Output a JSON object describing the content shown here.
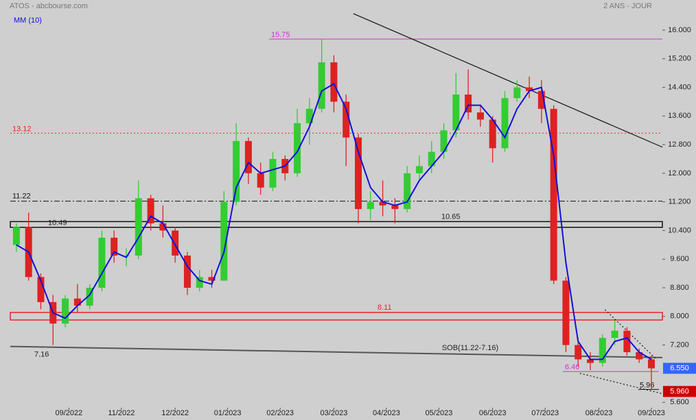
{
  "chart_data": {
    "type": "candlestick",
    "title": "ATOS - abcbourse.com",
    "subtitle": "2 ANS - JOUR",
    "x": [
      0.5,
      1.5,
      2.5,
      3.5,
      4.5,
      5.5,
      6.5,
      7.5,
      8.5,
      9.5,
      10.5,
      11.5,
      12.5,
      13.5,
      14.5,
      15.5,
      16.5,
      17.5,
      18.5,
      19.5,
      20.5,
      21.5,
      22.5,
      23.5,
      24.5,
      25.5,
      26.5,
      27.5,
      28.5,
      29.5,
      30.5,
      31.5,
      32.5,
      33.5,
      34.5,
      35.5,
      36.5,
      37.5,
      38.5,
      39.5,
      40.5,
      41.5,
      42.5,
      43.5,
      44.5,
      45.5,
      46.5,
      47.5,
      48.5,
      49.5,
      50.5,
      51.5,
      52.5
    ],
    "open": [
      10.0,
      10.5,
      9.1,
      8.4,
      7.8,
      8.5,
      8.3,
      8.8,
      10.2,
      9.7,
      9.7,
      11.3,
      10.6,
      10.4,
      9.7,
      8.8,
      9.1,
      9.0,
      11.2,
      12.9,
      12.0,
      11.6,
      12.4,
      12.0,
      13.4,
      13.8,
      15.1,
      14.0,
      13.0,
      11.0,
      11.2,
      11.1,
      11.0,
      12.0,
      12.2,
      12.6,
      13.2,
      14.2,
      13.7,
      13.5,
      12.7,
      14.1,
      14.4,
      14.3,
      13.8,
      9.0,
      7.2,
      6.8,
      6.7,
      7.4,
      7.6,
      7.0,
      6.8
    ],
    "high": [
      10.6,
      10.9,
      9.2,
      8.6,
      8.6,
      8.9,
      8.9,
      10.4,
      10.4,
      9.9,
      11.8,
      11.4,
      11.1,
      10.5,
      9.8,
      9.3,
      9.3,
      11.5,
      13.4,
      13.0,
      12.3,
      12.6,
      12.5,
      13.8,
      14.1,
      15.75,
      15.3,
      14.2,
      13.1,
      11.5,
      11.8,
      11.3,
      12.2,
      12.5,
      12.9,
      13.4,
      14.8,
      14.9,
      13.9,
      13.6,
      14.3,
      14.6,
      14.7,
      14.6,
      13.9,
      9.1,
      7.4,
      7.0,
      7.5,
      7.9,
      7.7,
      7.1,
      6.9
    ],
    "low": [
      9.8,
      9.0,
      8.2,
      7.2,
      7.7,
      8.1,
      8.2,
      8.7,
      9.5,
      9.4,
      9.6,
      10.4,
      10.2,
      9.5,
      8.6,
      8.7,
      8.8,
      9.0,
      11.1,
      11.7,
      11.4,
      11.5,
      11.8,
      11.9,
      12.8,
      13.7,
      13.7,
      12.2,
      10.6,
      10.7,
      10.8,
      10.6,
      10.9,
      11.8,
      12.0,
      12.4,
      13.0,
      13.5,
      13.3,
      12.3,
      12.6,
      14.0,
      14.1,
      13.4,
      8.9,
      7.0,
      6.6,
      6.5,
      6.6,
      7.2,
      6.9,
      6.7,
      5.96
    ],
    "close": [
      10.5,
      9.1,
      8.4,
      7.8,
      8.5,
      8.3,
      8.8,
      10.2,
      9.7,
      9.7,
      11.3,
      10.6,
      10.4,
      9.7,
      8.8,
      9.1,
      9.0,
      11.2,
      12.9,
      12.0,
      11.6,
      12.4,
      12.0,
      13.4,
      13.8,
      15.1,
      14.0,
      13.0,
      11.0,
      11.2,
      11.1,
      11.0,
      12.0,
      12.2,
      12.6,
      13.2,
      14.2,
      13.7,
      13.5,
      12.7,
      14.1,
      14.4,
      14.3,
      13.8,
      9.0,
      7.2,
      6.8,
      6.7,
      7.4,
      7.6,
      7.0,
      6.8,
      6.55
    ],
    "up_color": "#33cc33",
    "down_color": "#dd2222",
    "series": [
      {
        "name": "MM (10)",
        "color": "#1010dd",
        "values": [
          10.0,
          9.8,
          9.0,
          8.1,
          7.95,
          8.3,
          8.6,
          9.2,
          9.8,
          9.65,
          10.2,
          10.8,
          10.6,
          10.0,
          9.4,
          9.0,
          8.9,
          9.8,
          11.6,
          12.3,
          12.0,
          12.1,
          12.2,
          12.6,
          13.3,
          14.3,
          14.5,
          13.8,
          12.6,
          11.6,
          11.2,
          11.1,
          11.2,
          11.8,
          12.2,
          12.6,
          13.2,
          13.9,
          13.9,
          13.5,
          13.0,
          13.8,
          14.3,
          14.4,
          12.5,
          9.5,
          7.3,
          6.8,
          6.8,
          7.3,
          7.4,
          7.0,
          6.8
        ]
      }
    ],
    "xlim": [
      0,
      53.4
    ],
    "xticks": [
      {
        "value": 4.8,
        "label": "09/2022"
      },
      {
        "value": 9.1,
        "label": "11/2022"
      },
      {
        "value": 13.5,
        "label": "12/2022"
      },
      {
        "value": 17.8,
        "label": "01/2023"
      },
      {
        "value": 22.1,
        "label": "02/2023"
      },
      {
        "value": 26.5,
        "label": "03/2023"
      },
      {
        "value": 30.8,
        "label": "04/2023"
      },
      {
        "value": 35.1,
        "label": "05/2023"
      },
      {
        "value": 39.5,
        "label": "06/2023"
      },
      {
        "value": 43.8,
        "label": "07/2023"
      },
      {
        "value": 48.2,
        "label": "08/2023"
      },
      {
        "value": 52.5,
        "label": "09/2023"
      }
    ],
    "ylim": [
      5.45,
      16.65
    ],
    "yticks": [
      {
        "value": 16,
        "label": "16.000"
      },
      {
        "value": 15.2,
        "label": "15.200"
      },
      {
        "value": 14.4,
        "label": "14.400"
      },
      {
        "value": 13.6,
        "label": "13.600"
      },
      {
        "value": 12.8,
        "label": "12.800"
      },
      {
        "value": 12,
        "label": "12.000"
      },
      {
        "value": 11.2,
        "label": "11.200"
      },
      {
        "value": 10.4,
        "label": "10.400"
      },
      {
        "value": 9.6,
        "label": "9.600"
      },
      {
        "value": 8.8,
        "label": "8.800"
      },
      {
        "value": 8,
        "label": "8.000"
      },
      {
        "value": 7.2,
        "label": "7.200"
      },
      {
        "value": 5.6,
        "label": "5.600"
      }
    ],
    "levels": [
      {
        "value": 15.75,
        "color": "#cc33cc",
        "style": "solid"
      },
      {
        "value": 13.12,
        "color": "#ee2222",
        "style": "dotted"
      },
      {
        "value": 11.22,
        "color": "#111111",
        "style": "dashdot"
      },
      {
        "value": 6.46,
        "color": "#cc33cc",
        "style": "solid"
      },
      {
        "value": 5.96,
        "color": "#111111",
        "style": "solid"
      }
    ],
    "bands": [
      {
        "low": 10.49,
        "high": 10.65,
        "color": "#111111"
      },
      {
        "low": 7.9,
        "high": 8.11,
        "color": "#ee2222"
      }
    ],
    "trendlines": [
      {
        "x": [
          28.1,
          53.4
        ],
        "y": [
          16.46,
          12.73
        ],
        "color": "#111111",
        "style": "solid"
      },
      {
        "name": "SOB(11.22-7.16)",
        "x": [
          0,
          53.4
        ],
        "y": [
          7.16,
          6.85
        ],
        "color": "#555555",
        "style": "solid"
      },
      {
        "x": [
          48.7,
          52.95
        ],
        "y": [
          8.19,
          6.79
        ],
        "color": "#111111",
        "style": "dotted"
      },
      {
        "x": [
          46.65,
          53.4
        ],
        "y": [
          6.41,
          5.84
        ],
        "color": "#111111",
        "style": "dotted"
      }
    ],
    "last_prices": [
      {
        "value": 6.55,
        "label": "6.550",
        "color": "#3366ff"
      },
      {
        "value": 5.96,
        "label": "5.960",
        "color": "#cc0000"
      }
    ]
  }
}
